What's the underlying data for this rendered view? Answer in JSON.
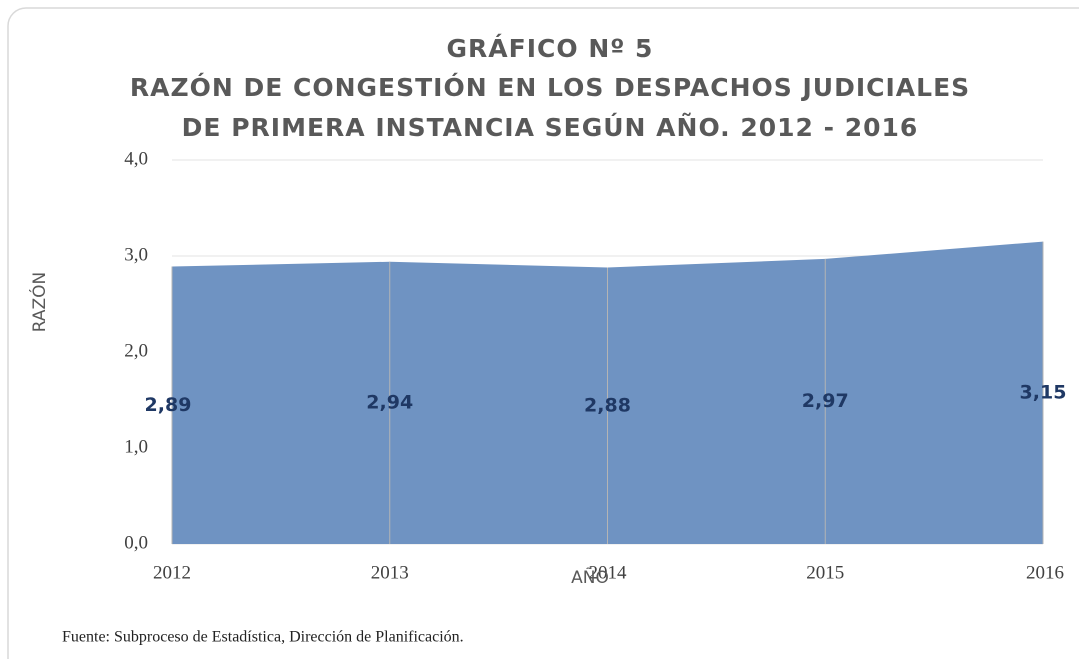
{
  "chart_data": {
    "type": "area",
    "title": [
      "GRÁFICO Nº 5",
      "RAZÓN DE CONGESTIÓN EN LOS DESPACHOS JUDICIALES",
      "DE PRIMERA INSTANCIA SEGÚN AÑO. 2012 - 2016"
    ],
    "categories": [
      "2012",
      "2013",
      "2014",
      "2015",
      "2016"
    ],
    "values": [
      2.89,
      2.94,
      2.88,
      2.97,
      3.15
    ],
    "value_labels": [
      "2,89",
      "2,94",
      "2,88",
      "2,97",
      "3,15"
    ],
    "color": "#6f93c2",
    "ylim": [
      0,
      4
    ],
    "yticks": [
      {
        "value": 0,
        "label": "0,0"
      },
      {
        "value": 1,
        "label": "1,0"
      },
      {
        "value": 2,
        "label": "2,0"
      },
      {
        "value": 3,
        "label": "3,0"
      },
      {
        "value": 4,
        "label": "4,0"
      }
    ],
    "grid": true,
    "ylabel": "RAZÓN",
    "xlabel": "AÑO",
    "source": "Fuente: Subproceso de Estadística, Dirección de Planificación."
  }
}
